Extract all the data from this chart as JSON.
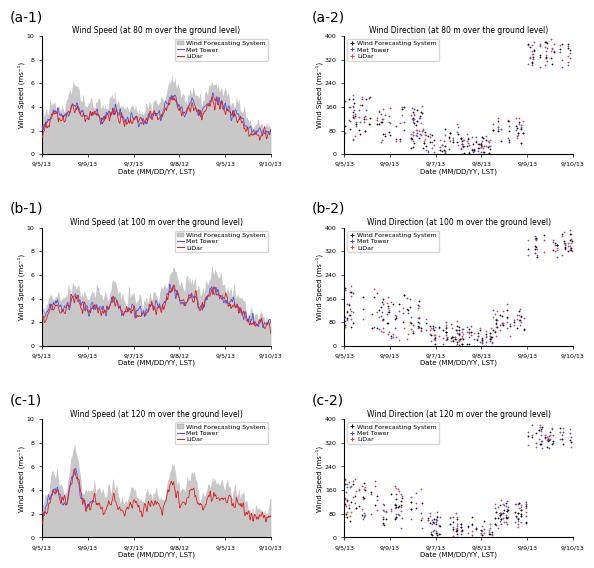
{
  "panels": [
    {
      "label": "(a-1)",
      "title": "Wind Speed (at 80 m over the ground level)",
      "ylabel": "Wind Speed (ms⁻¹)",
      "ylim": [
        0,
        10
      ],
      "yticks": [
        0,
        2,
        4,
        6,
        8,
        10
      ],
      "type": "speed",
      "has_met": true,
      "has_lidar": true,
      "speed_xticks": [
        "9/5/13",
        "9/9/13",
        "9/7/13",
        "9/8/12",
        "9/5/13",
        "9/10/13"
      ]
    },
    {
      "label": "(a-2)",
      "title": "Wind Direction (at 80 m over the ground level)",
      "ylabel": "Wind Speed (ms⁻¹)",
      "ylim": [
        0,
        400
      ],
      "yticks": [
        0,
        80,
        160,
        240,
        320,
        400
      ],
      "type": "direction",
      "dir_xticks": [
        "9/5/13",
        "9/9/13",
        "9/7/13",
        "9/8/13",
        "9/9/13",
        "9/10/13"
      ]
    },
    {
      "label": "(b-1)",
      "title": "Wind Speed (at 100 m over the ground level)",
      "ylabel": "Wind Speed (ms⁻¹)",
      "ylim": [
        0,
        10
      ],
      "yticks": [
        0,
        2,
        4,
        6,
        8,
        10
      ],
      "type": "speed",
      "has_met": true,
      "has_lidar": true,
      "speed_xticks": [
        "9/5/13",
        "9/9/13",
        "9/7/13",
        "9/8/12",
        "9/5/13",
        "9/10/13"
      ]
    },
    {
      "label": "(b-2)",
      "title": "Wind Direction (at 100 m over the ground level)",
      "ylabel": "Wind Speed (ms⁻¹)",
      "ylim": [
        0,
        400
      ],
      "yticks": [
        0,
        80,
        160,
        240,
        320,
        400
      ],
      "type": "direction",
      "dir_xticks": [
        "9/5/13",
        "9/9/13",
        "9/7/13",
        "9/8/13",
        "9/9/13",
        "9/10/13"
      ]
    },
    {
      "label": "(c-1)",
      "title": "Wind Speed (at 120 m over the ground level)",
      "ylabel": "Wind Speed (ms⁻¹)",
      "ylim": [
        0,
        10
      ],
      "yticks": [
        0,
        2,
        4,
        6,
        8,
        10
      ],
      "type": "speed",
      "has_met": true,
      "has_lidar": true,
      "speed_xticks": [
        "9/5/13",
        "9/9/13",
        "9/7/13",
        "9/8/12",
        "9/5/13",
        "9/10/13"
      ]
    },
    {
      "label": "(c-2)",
      "title": "Wind Direction (at 120 m over the ground level)",
      "ylabel": "Wind Speed (ms⁻¹)",
      "ylim": [
        0,
        400
      ],
      "yticks": [
        0,
        80,
        160,
        240,
        320,
        400
      ],
      "type": "direction",
      "dir_xticks": [
        "9/5/13",
        "9/9/13",
        "9/7/13",
        "9/8/13",
        "9/9/13",
        "9/10/13"
      ]
    }
  ],
  "xlabel": "Date (MM/DD/YY, LST)",
  "colors": {
    "forecast_fill": "#c8c8c8",
    "forecast_line": "#b0b0b0",
    "met_tower": "#5555dd",
    "lidar": "#dd2222",
    "dir_forecast": "#111111",
    "dir_met": "#5555cc",
    "dir_lidar": "#dd4444"
  },
  "legend_labels": [
    "Wind Forecasting System",
    "Met Tower",
    "LiDar"
  ],
  "panel_label_fontsize": 10,
  "title_fontsize": 5.5,
  "tick_fontsize": 4.5,
  "label_fontsize": 5.0,
  "legend_fontsize": 4.5
}
